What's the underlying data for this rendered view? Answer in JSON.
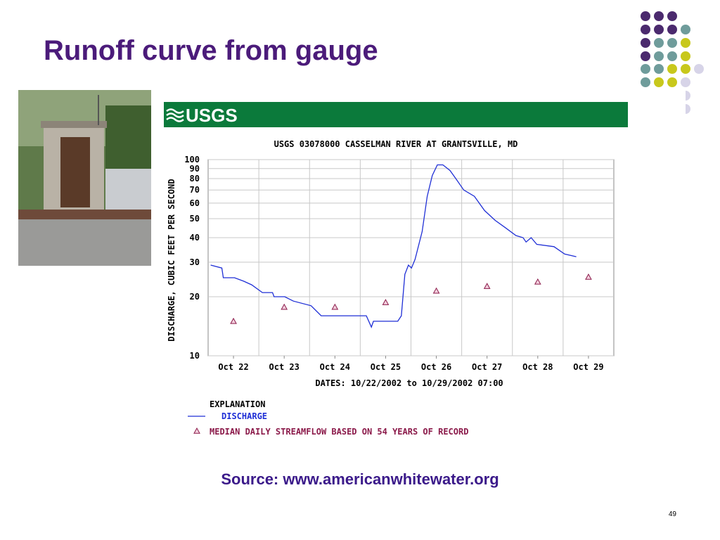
{
  "title": "Runoff curve from gauge",
  "logo": "USGS",
  "source": "Source: www.americanwhitewater.org",
  "page_number": "49",
  "chart_data": {
    "type": "line",
    "title": "USGS 03078000 CASSELMAN RIVER AT GRANTSVILLE, MD",
    "y_label": "DISCHARGE, CUBIC FEET PER SECOND",
    "x_label": "DATES: 10/22/2002 to 10/29/2002 07:00",
    "legend_title": "EXPLANATION",
    "log_y": true,
    "grid": true,
    "xlim": [
      0,
      8
    ],
    "xgrid": [
      1,
      2,
      3,
      4,
      5,
      6,
      7
    ],
    "xticks": [
      {
        "value": 0.5,
        "label": "Oct 22"
      },
      {
        "value": 1.5,
        "label": "Oct 23"
      },
      {
        "value": 2.5,
        "label": "Oct 24"
      },
      {
        "value": 3.5,
        "label": "Oct 25"
      },
      {
        "value": 4.5,
        "label": "Oct 26"
      },
      {
        "value": 5.5,
        "label": "Oct 27"
      },
      {
        "value": 6.5,
        "label": "Oct 28"
      },
      {
        "value": 7.5,
        "label": "Oct 29"
      }
    ],
    "ylim": [
      10,
      100
    ],
    "yticks": [
      10,
      20,
      30,
      40,
      50,
      60,
      70,
      80,
      90,
      100
    ],
    "series": [
      {
        "name": "DISCHARGE",
        "type": "line",
        "color": "#1f2fd6",
        "x": [
          0.05,
          0.27,
          0.3,
          0.52,
          0.7,
          0.86,
          1.07,
          1.27,
          1.3,
          1.51,
          1.68,
          2.03,
          2.23,
          3.12,
          3.22,
          3.26,
          3.74,
          3.81,
          3.88,
          3.95,
          4.01,
          4.08,
          4.22,
          4.32,
          4.42,
          4.52,
          4.63,
          4.77,
          4.9,
          5.04,
          5.25,
          5.45,
          5.66,
          5.86,
          6.07,
          6.21,
          6.27,
          6.37,
          6.48,
          6.82,
          7.03,
          7.26
        ],
        "values": [
          29,
          28,
          25,
          25,
          24,
          23,
          21,
          21,
          20,
          20,
          19,
          18,
          16,
          16,
          14,
          15,
          15,
          16,
          26,
          29,
          28,
          31,
          43,
          65,
          83,
          94,
          94,
          88,
          79,
          70,
          65,
          55,
          49,
          45,
          41,
          40,
          38,
          40,
          37,
          36,
          33,
          32
        ]
      },
      {
        "name": "MEDIAN DAILY STREAMFLOW BASED ON 54 YEARS OF RECORD",
        "type": "scatter",
        "color": "#8b1a4a",
        "x": [
          0.5,
          1.5,
          2.5,
          3.5,
          4.5,
          5.5,
          6.5,
          7.5
        ],
        "values": [
          15,
          17.7,
          17.7,
          18.7,
          21.4,
          22.6,
          23.8,
          25.2
        ]
      }
    ]
  }
}
